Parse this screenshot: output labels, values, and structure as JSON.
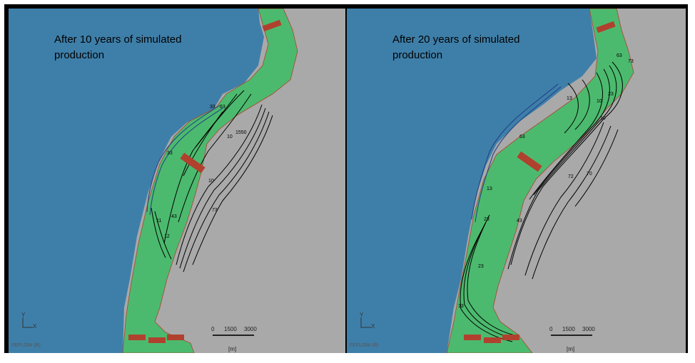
{
  "panels": [
    {
      "title_line1": "After 10 years of simulated",
      "title_line2": "production",
      "contour_labels": [
        "33",
        "63",
        "10",
        "1550",
        "33",
        "11",
        "43",
        "12",
        "10",
        "73"
      ],
      "axis_y": "Y",
      "axis_x": "X",
      "brand": "FEFLOW (R)",
      "scale_ticks": [
        "0",
        "1500",
        "3000"
      ],
      "scale_unit": "[m]"
    },
    {
      "title_line1": "After 20 years of simulated",
      "title_line2": "production",
      "contour_labels": [
        "63",
        "73",
        "23",
        "10",
        "13",
        "63",
        "13",
        "23",
        "43",
        "70",
        "72",
        "10",
        "23",
        "13"
      ],
      "axis_y": "Y",
      "axis_x": "X",
      "brand": "FEFLOW (R)",
      "scale_ticks": [
        "0",
        "1500",
        "3000"
      ],
      "scale_unit": "[m]"
    }
  ],
  "colors": {
    "sea": "#3e7fa9",
    "land": "#a9a9a9",
    "aquifer": "#4cba6e",
    "well": "#b0412e",
    "contour": "#000000",
    "contour_blue": "#1f3d86"
  }
}
